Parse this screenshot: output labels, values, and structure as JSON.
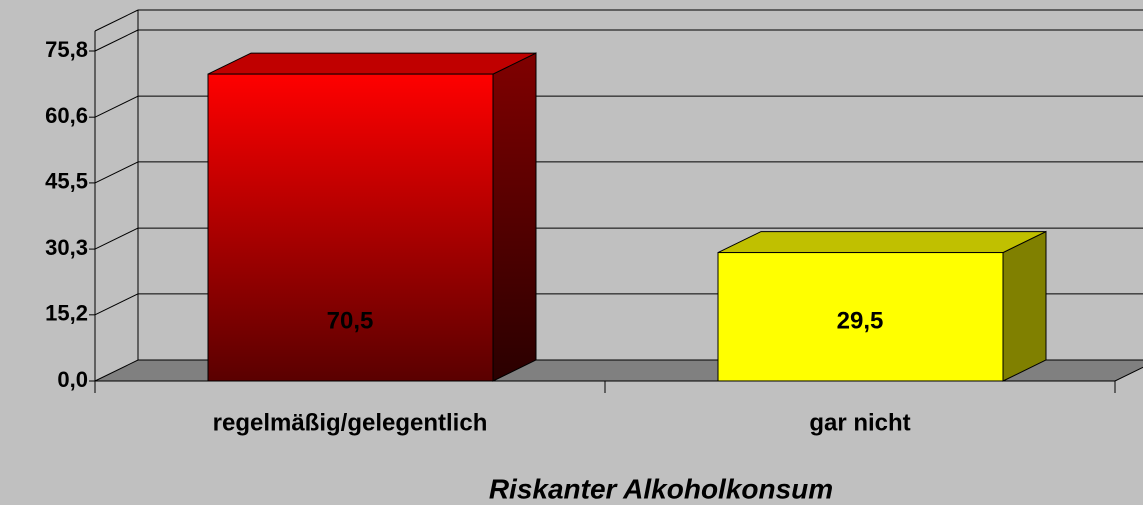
{
  "chart_data": {
    "type": "bar3d",
    "x_label": "Riskanter Alkoholkonsum",
    "categories": [
      "regelmäßig/gelegentlich",
      "gar nicht"
    ],
    "values": [
      70.5,
      29.5
    ],
    "value_labels": [
      "70,5",
      "29,5"
    ],
    "colors": [
      "#ff0000",
      "#ffff00"
    ],
    "ylim": [
      0,
      75.8
    ],
    "yticks": [
      {
        "value": 0,
        "label": "0,0"
      },
      {
        "value": 15.2,
        "label": "15,2"
      },
      {
        "value": 30.3,
        "label": "30,3"
      },
      {
        "value": 45.5,
        "label": "45,5"
      },
      {
        "value": 60.6,
        "label": "60,6"
      },
      {
        "value": 75.8,
        "label": "75,8"
      }
    ],
    "grid": true
  }
}
